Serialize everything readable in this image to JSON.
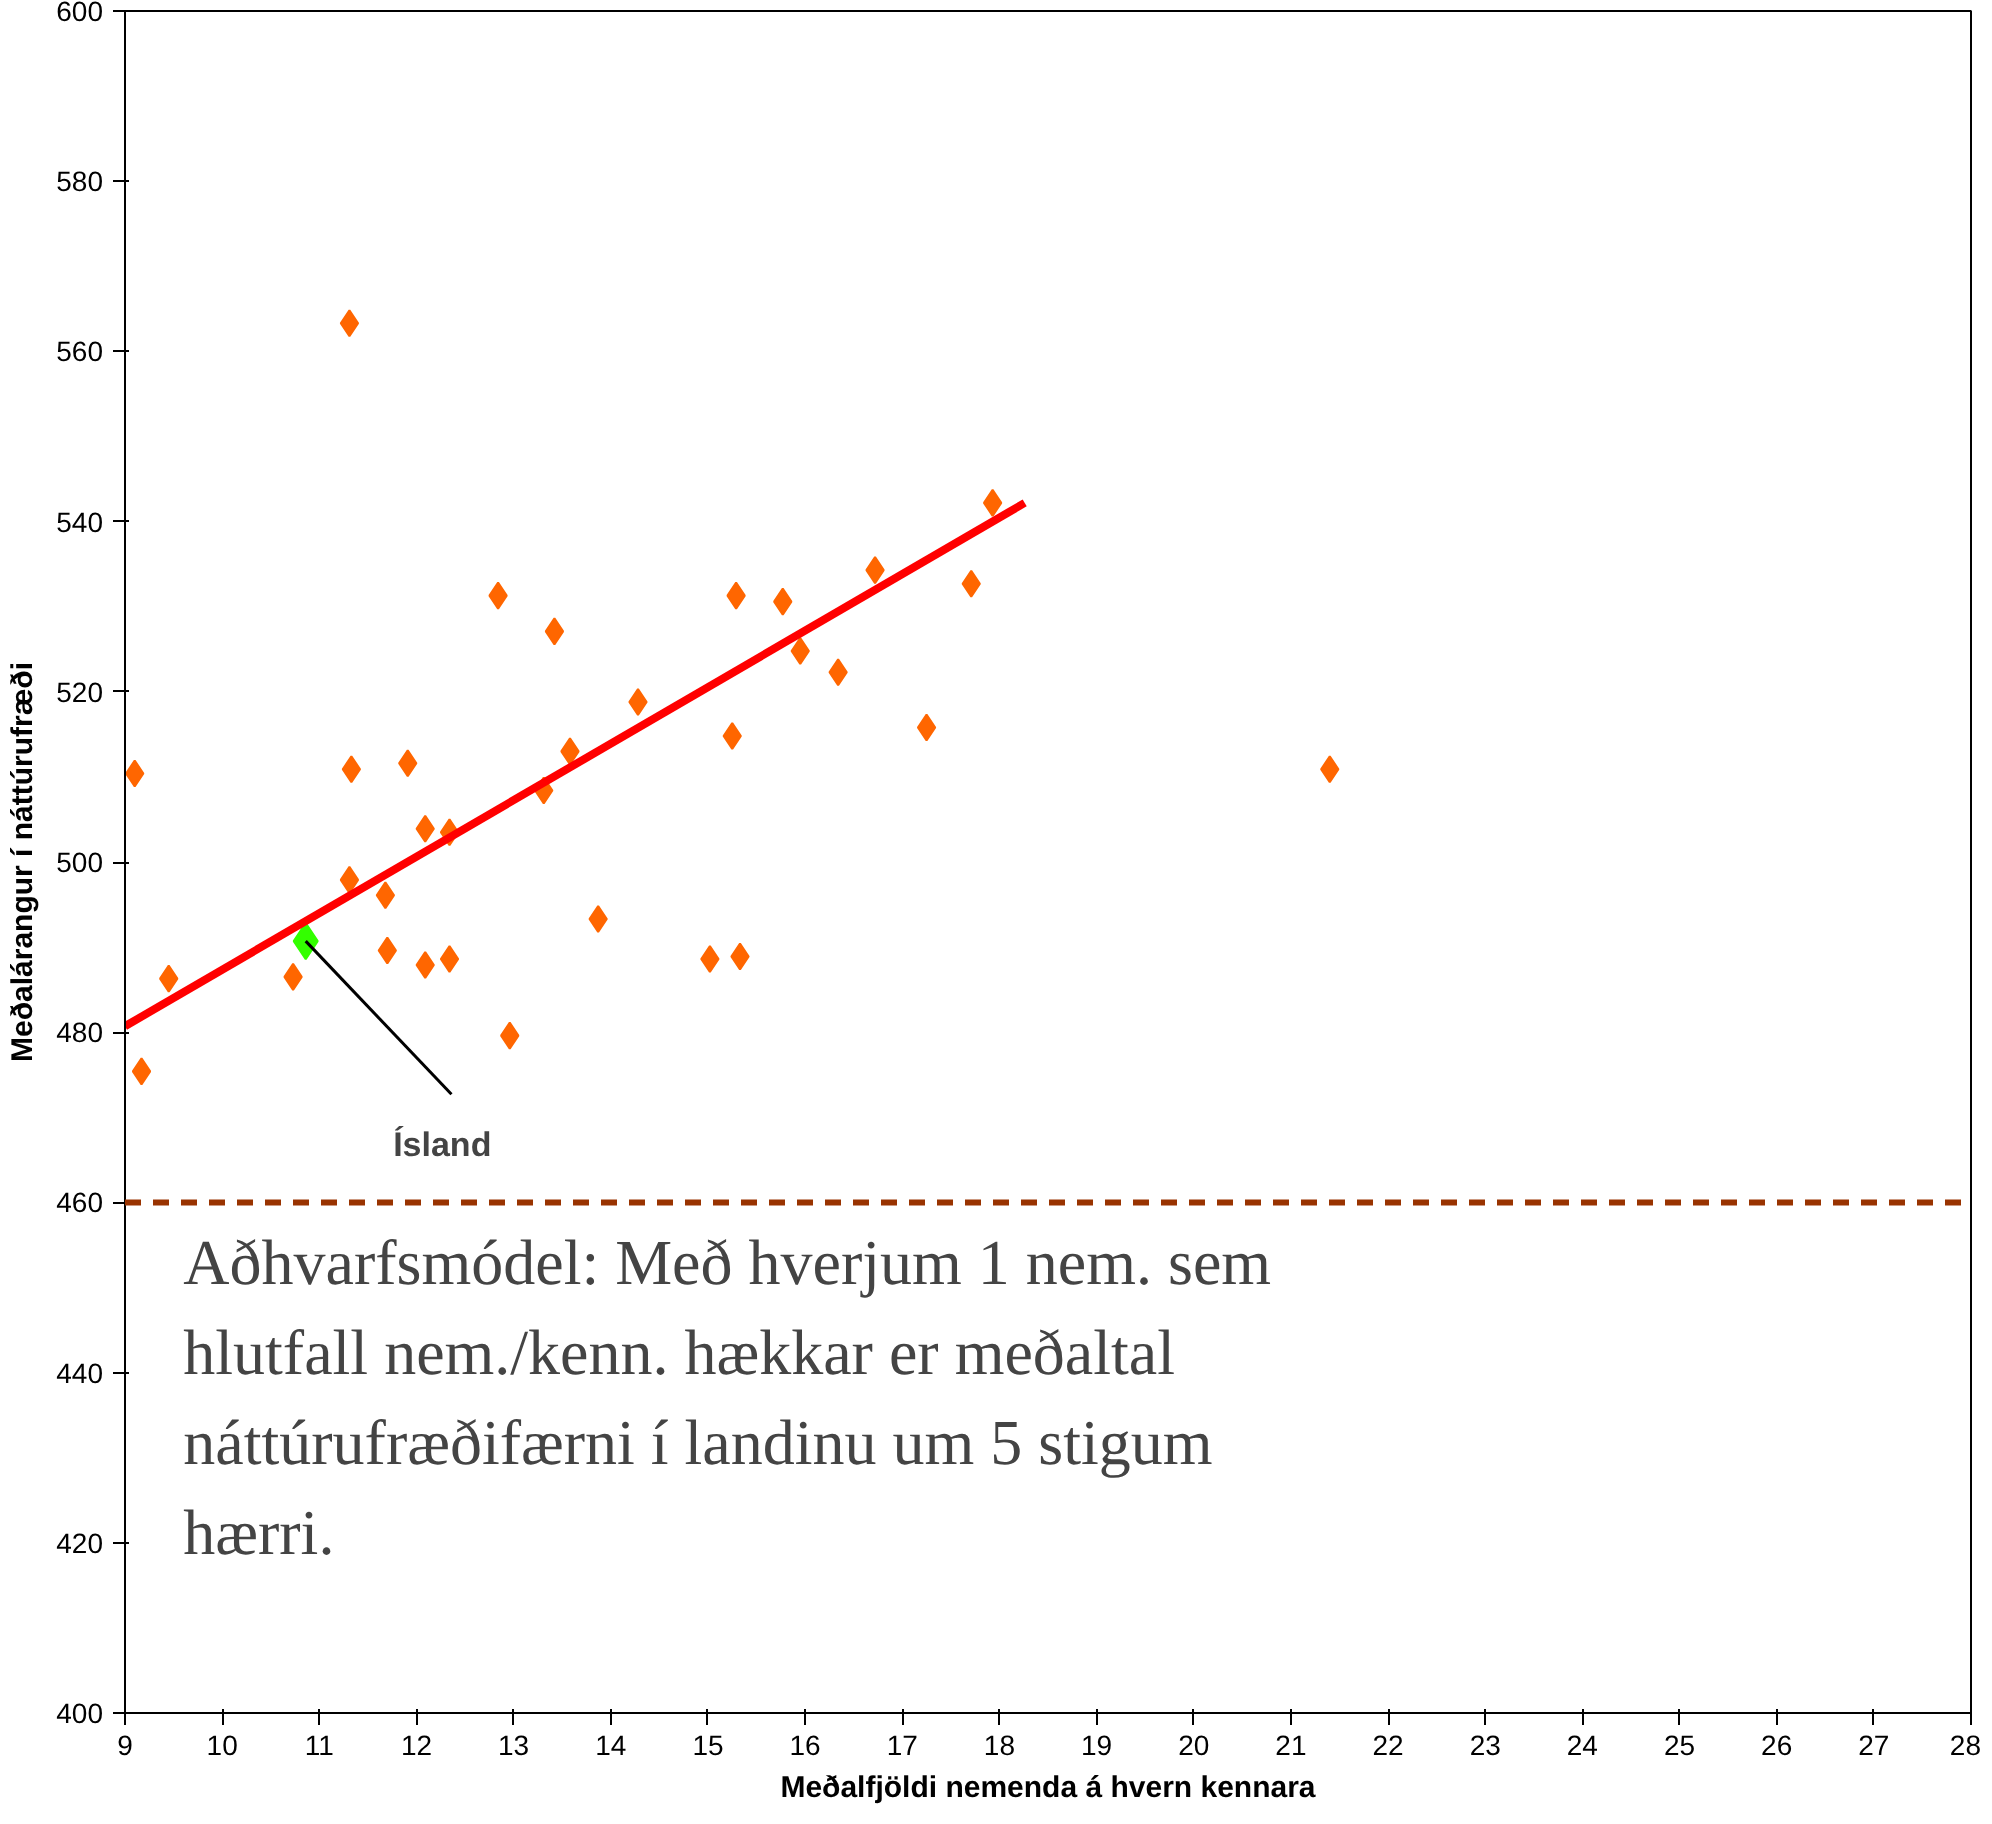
{
  "chart_data": {
    "type": "scatter",
    "xlabel": "Meðalfjöldi nemenda á hvern kennara",
    "ylabel": "Meðalárangur í náttúrufræði",
    "xlim": [
      9,
      28
    ],
    "xticks": [
      9,
      10,
      11,
      12,
      13,
      14,
      15,
      16,
      17,
      18,
      19,
      20,
      21,
      22,
      23,
      24,
      25,
      26,
      27,
      28
    ],
    "ylim": [
      400,
      600
    ],
    "yticks": [
      400,
      420,
      440,
      460,
      480,
      500,
      520,
      540,
      560,
      580,
      600
    ],
    "grid": false,
    "marker": "diamond",
    "series": [
      {
        "color": "#ff6600",
        "x": [
          9.1,
          9.45,
          9.17,
          11.31,
          11.33,
          11.31,
          10.73,
          11.68,
          11.7,
          11.91,
          12.09,
          12.09,
          12.34,
          12.34,
          12.84,
          12.96,
          13.31,
          13.42,
          13.58,
          13.87,
          14.28,
          15.02,
          15.29,
          15.25,
          15.33,
          15.77,
          15.95,
          16.34,
          16.72,
          17.25,
          17.71,
          17.93,
          21.4
        ],
        "values": [
          510.4,
          486.3,
          475.4,
          563.3,
          510.9,
          497.9,
          486.5,
          496.1,
          489.6,
          511.6,
          503.9,
          487.9,
          503.5,
          488.6,
          531.3,
          479.6,
          508.4,
          527.1,
          513.0,
          493.3,
          518.8,
          488.6,
          531.3,
          514.8,
          488.9,
          530.6,
          524.8,
          522.3,
          534.3,
          515.8,
          532.7,
          542.2,
          510.9
        ]
      },
      {
        "color": "#33ff00",
        "x": [
          10.86
        ],
        "values": [
          490.7
        ]
      },
      {
        "type": "line",
        "color": "#ff0000",
        "line_style": "solid",
        "marker": "none",
        "x": [
          9.0,
          18.26
        ],
        "values": [
          480.7,
          542.2
        ]
      }
    ],
    "ref_lines": [
      {
        "axis": "y",
        "value": 460,
        "color": "#993300",
        "line_style": "dashed"
      }
    ],
    "annotations": [
      {
        "text": "Ísland",
        "x": 10.86,
        "y": 490.7
      },
      "Aðhvarfsmódel: Með hverjum 1 nem. sem hlutfall nem./kenn. hækkar er meðaltal náttúrufræðifærni í landinu um 5 stigum hærri."
    ]
  }
}
